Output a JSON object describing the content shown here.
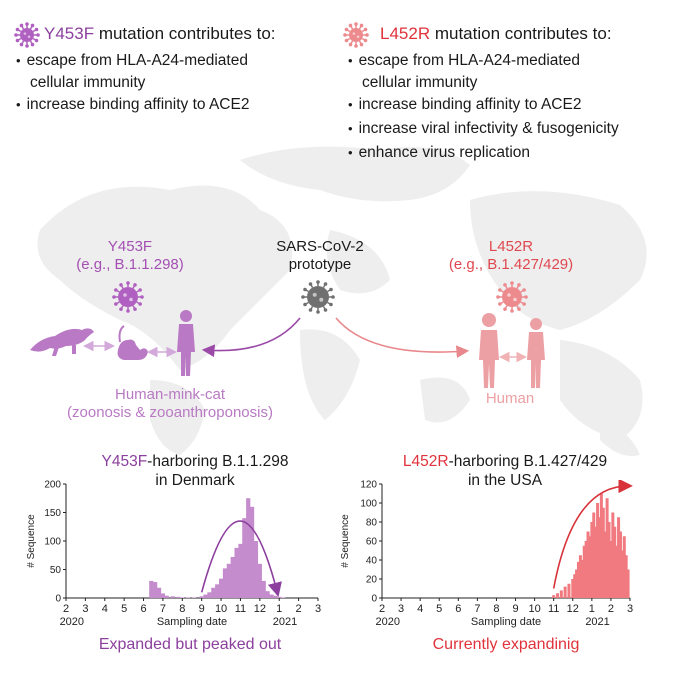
{
  "mutations": {
    "y453f": {
      "name": "Y453F",
      "title_rest": " mutation contributes to:",
      "effects": [
        "escape from HLA-A24-mediated",
        "cellular immunity",
        "increase binding affinity to ACE2"
      ]
    },
    "l452r": {
      "name": "L452R",
      "title_rest": " mutation contributes to:",
      "effects": [
        "escape from HLA-A24-mediated",
        "cellular immunity",
        "increase binding affinity to ACE2",
        "increase viral infectivity & fusogenicity",
        "enhance virus replication"
      ]
    }
  },
  "diagram": {
    "left": {
      "line1": "Y453F",
      "line2": "(e.g., B.1.1.298)",
      "host_line1": "Human-mink-cat",
      "host_line2": "(zoonosis & zooanthroponosis)"
    },
    "center": {
      "line1": "SARS-CoV-2",
      "line2": "prototype"
    },
    "right": {
      "line1": "L452R",
      "line2": "(e.g., B.1.427/429)",
      "host": "Human"
    },
    "icons": [
      "virus-icon",
      "mink-icon",
      "cat-icon",
      "human-icon",
      "double-arrow-icon",
      "world-map"
    ],
    "colors": {
      "purple": "#a44fb3",
      "dark_purple": "#8c3f9e",
      "red": "#e0333b",
      "pink": "#e8888c",
      "grey": "#777777",
      "map": "#f0f0f0"
    }
  },
  "charts": {
    "left": {
      "title_highlight": "Y453F",
      "title_rest": "-harboring B.1.1.298",
      "title_line2": "in Denmark",
      "caption": "Expanded but peaked out"
    },
    "right": {
      "title_highlight": "L452R",
      "title_rest": "-harboring B.1.427/429",
      "title_line2": "in the USA",
      "caption": "Currently expandinig"
    }
  },
  "chart_data": [
    {
      "type": "bar",
      "title": "Y453F-harboring B.1.1.298 in Denmark",
      "xlabel": "Sampling date",
      "ylabel": "# Sequence",
      "ylim": [
        0,
        200
      ],
      "yticks": [
        0,
        50,
        100,
        150,
        200
      ],
      "xlim": [
        2,
        15
      ],
      "xticks": [
        "2",
        "3",
        "4",
        "5",
        "6",
        "7",
        "8",
        "9",
        "10",
        "11",
        "12",
        "1",
        "2",
        "3"
      ],
      "year_labels": [
        "2020",
        "2021"
      ],
      "color": "#c48ccc",
      "x": [
        6.4,
        6.6,
        6.8,
        7.0,
        7.2,
        7.5,
        7.8,
        8.0,
        8.3,
        8.6,
        9.0,
        9.2,
        9.4,
        9.6,
        9.8,
        10.0,
        10.2,
        10.4,
        10.6,
        10.8,
        11.0,
        11.2,
        11.4,
        11.6,
        11.8,
        12.0,
        12.2,
        12.4,
        12.6,
        12.8,
        13.0,
        13.2
      ],
      "values": [
        30,
        28,
        18,
        8,
        4,
        3,
        2,
        1,
        1,
        1,
        3,
        6,
        10,
        18,
        24,
        34,
        52,
        60,
        72,
        88,
        95,
        140,
        175,
        160,
        100,
        60,
        30,
        12,
        6,
        4,
        2,
        1
      ],
      "annotation": "arrow rising then falling"
    },
    {
      "type": "bar",
      "title": "L452R-harboring B.1.427/429 in the USA",
      "xlabel": "Sampling date",
      "ylabel": "# Sequence",
      "ylim": [
        0,
        120
      ],
      "yticks": [
        0,
        20,
        40,
        60,
        80,
        100,
        120
      ],
      "xlim": [
        2,
        15
      ],
      "xticks": [
        "2",
        "3",
        "4",
        "5",
        "6",
        "7",
        "8",
        "9",
        "10",
        "11",
        "12",
        "1",
        "2",
        "3"
      ],
      "year_labels": [
        "2020",
        "2021"
      ],
      "color": "#f07a80",
      "x": [
        11.0,
        11.2,
        11.4,
        11.6,
        11.8,
        12.0,
        12.1,
        12.2,
        12.3,
        12.4,
        12.5,
        12.6,
        12.7,
        12.8,
        12.9,
        13.0,
        13.1,
        13.2,
        13.3,
        13.4,
        13.5,
        13.6,
        13.7,
        13.8,
        13.9,
        14.0,
        14.1,
        14.2,
        14.3,
        14.4,
        14.5,
        14.6,
        14.7,
        14.8,
        14.9
      ],
      "values": [
        3,
        5,
        8,
        12,
        15,
        20,
        25,
        30,
        38,
        45,
        40,
        55,
        60,
        70,
        65,
        80,
        90,
        75,
        100,
        85,
        110,
        95,
        70,
        105,
        80,
        60,
        90,
        75,
        55,
        85,
        70,
        50,
        65,
        45,
        30
      ],
      "annotation": "arrow rising"
    }
  ]
}
